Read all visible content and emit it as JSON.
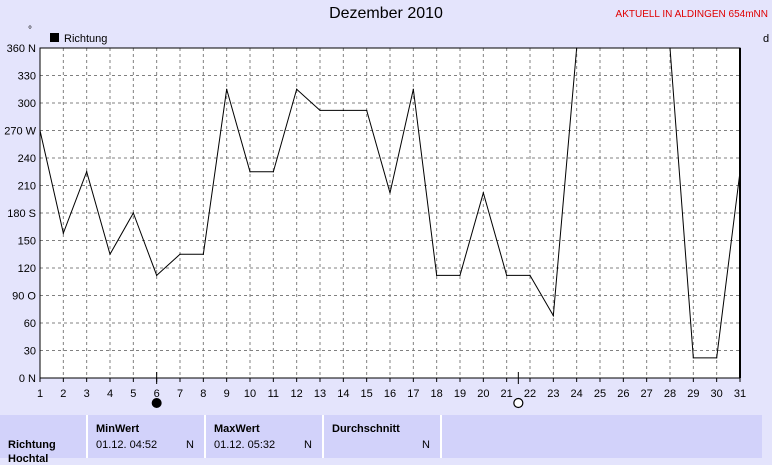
{
  "header": {
    "title": "Dezember 2010",
    "status": "AKTUELL IN ALDINGEN 654mNN"
  },
  "chart_data": {
    "type": "line",
    "title": "Dezember 2010",
    "xlabel": "",
    "ylabel": "",
    "x": [
      1,
      2,
      3,
      4,
      5,
      6,
      7,
      8,
      9,
      10,
      11,
      12,
      13,
      14,
      15,
      16,
      17,
      18,
      19,
      20,
      21,
      22,
      23,
      24,
      25,
      26,
      27,
      28,
      29,
      30,
      31
    ],
    "series": [
      {
        "name": "Richtung",
        "values": [
          270,
          158,
          225,
          135,
          180,
          112,
          135,
          135,
          315,
          225,
          225,
          315,
          292,
          292,
          292,
          202,
          315,
          112,
          112,
          202,
          112,
          112,
          68,
          360,
          360,
          360,
          360,
          360,
          22,
          22,
          225
        ]
      }
    ],
    "xlim": [
      1,
      31
    ],
    "ylim": [
      0,
      360
    ],
    "yticks": [
      0,
      30,
      60,
      90,
      120,
      150,
      180,
      210,
      240,
      270,
      300,
      330,
      360
    ],
    "ytick_labels": [
      "0",
      "30",
      "60",
      "90",
      "120",
      "150",
      "180",
      "210",
      "240",
      "270",
      "300",
      "330",
      "360"
    ],
    "ytick_directions": {
      "0": "N",
      "90": "O",
      "180": "S",
      "270": "W",
      "360": "N"
    },
    "xtick_labels": [
      "1",
      "2",
      "3",
      "4",
      "5",
      "6",
      "7",
      "8",
      "9",
      "10",
      "11",
      "12",
      "13",
      "14",
      "15",
      "16",
      "17",
      "18",
      "19",
      "20",
      "21",
      "22",
      "23",
      "24",
      "25",
      "26",
      "27",
      "28",
      "29",
      "30",
      "31"
    ],
    "right_axis_label": "d",
    "y_axis_marker": "°",
    "grid": true,
    "legend": "top-left",
    "moon_phases": [
      {
        "day": 6,
        "phase": "new-moon"
      },
      {
        "day": 21.5,
        "phase": "full-moon"
      }
    ],
    "colors": {
      "line": "#000000",
      "grid": "#808080",
      "background": "#e4e4fc",
      "plot_bg": "#ffffff"
    }
  },
  "stats": {
    "row_label": "Richtung",
    "row_label_2": "Hochtal",
    "min": {
      "header": "MinWert",
      "value": "01.12.  04:52",
      "dir": "N"
    },
    "max": {
      "header": "MaxWert",
      "value": "01.12.  05:32",
      "dir": "N"
    },
    "avg": {
      "header": "Durchschnitt",
      "value": "",
      "dir": "N"
    }
  }
}
